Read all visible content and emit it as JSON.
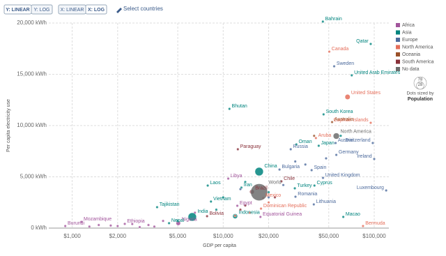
{
  "controls": {
    "y_scale": {
      "options": [
        "Y: LINEAR",
        "Y: LOG"
      ],
      "active": 0
    },
    "x_scale": {
      "options": [
        "X: LINEAR",
        "X: LOG"
      ],
      "active": 1
    },
    "select": "Select countries"
  },
  "chart_data": {
    "type": "scatter",
    "xlabel": "GDP per capita",
    "ylabel": "Per capita electricity use",
    "xscale": "log",
    "grid": true,
    "xlim": [
      700,
      125000
    ],
    "ylim": [
      0,
      20000
    ],
    "xticks": [
      {
        "value": 1000,
        "label": "$1,000"
      },
      {
        "value": 2000,
        "label": "$2,000"
      },
      {
        "value": 5000,
        "label": "$5,000"
      },
      {
        "value": 10000,
        "label": "$10,000"
      },
      {
        "value": 20000,
        "label": "$20,000"
      },
      {
        "value": 50000,
        "label": "$50,000"
      },
      {
        "value": 100000,
        "label": "$100,000"
      }
    ],
    "yticks": [
      {
        "value": 0,
        "label": "0 kWh"
      },
      {
        "value": 5000,
        "label": "5,000 kWh"
      },
      {
        "value": 10000,
        "label": "10,000 kWh"
      },
      {
        "value": 15000,
        "label": "15,000 kWh"
      },
      {
        "value": 20000,
        "label": "20,000 kWh"
      }
    ],
    "size_legend": {
      "values": [
        78,
        28
      ],
      "title": "Dots sized by",
      "variable": "Population"
    },
    "series": [
      {
        "name": "Africa",
        "color": "#a2559c",
        "points": [
          {
            "x": 900,
            "y": 200,
            "label": "Burundi"
          },
          {
            "x": 1150,
            "y": 610,
            "label": "Mozambique"
          },
          {
            "x": 2230,
            "y": 410,
            "label": "Ethiopia"
          },
          {
            "x": 5040,
            "y": 480,
            "label": "Nigeria",
            "population": 206
          },
          {
            "x": 10800,
            "y": 4830,
            "label": "Libya"
          },
          {
            "x": 12400,
            "y": 2180,
            "label": "Egypt"
          },
          {
            "x": 17650,
            "y": 1090,
            "label": "Equatorial Guinea"
          },
          {
            "x": 1500,
            "y": 300
          },
          {
            "x": 1800,
            "y": 250
          },
          {
            "x": 2500,
            "y": 400
          },
          {
            "x": 3200,
            "y": 300
          },
          {
            "x": 1300,
            "y": 150
          },
          {
            "x": 2000,
            "y": 200
          },
          {
            "x": 4000,
            "y": 700
          },
          {
            "x": 6500,
            "y": 1500
          },
          {
            "x": 3500,
            "y": 150
          },
          {
            "x": 2800,
            "y": 100
          }
        ]
      },
      {
        "name": "Asia",
        "color": "#00847e",
        "points": [
          {
            "x": 45700,
            "y": 20140,
            "label": "Bahrain"
          },
          {
            "x": 94800,
            "y": 17960,
            "label": "Qatar"
          },
          {
            "x": 71000,
            "y": 14900,
            "label": "United Arab Emirates"
          },
          {
            "x": 11000,
            "y": 11630,
            "label": "Bhutan"
          },
          {
            "x": 46200,
            "y": 11090,
            "label": "South Korea"
          },
          {
            "x": 30500,
            "y": 8160,
            "label": "Oman"
          },
          {
            "x": 42900,
            "y": 8030,
            "label": "Japan"
          },
          {
            "x": 17300,
            "y": 5510,
            "label": "China",
            "population": 1400
          },
          {
            "x": 7900,
            "y": 4150,
            "label": "Laos"
          },
          {
            "x": 13200,
            "y": 3950,
            "label": "Iran"
          },
          {
            "x": 29800,
            "y": 3880,
            "label": "Turkey"
          },
          {
            "x": 40200,
            "y": 4150,
            "label": "Cyprus"
          },
          {
            "x": 8300,
            "y": 2590,
            "label": "Vietnam"
          },
          {
            "x": 3650,
            "y": 2040,
            "label": "Tajikistan"
          },
          {
            "x": 6240,
            "y": 1090,
            "label": "India",
            "population": 1380
          },
          {
            "x": 4380,
            "y": 480,
            "label": "Nepal"
          },
          {
            "x": 12000,
            "y": 1160,
            "label": "Indonesia",
            "population": 273
          },
          {
            "x": 62400,
            "y": 1090,
            "label": "Macao"
          },
          {
            "x": 10000,
            "y": 3000
          },
          {
            "x": 14000,
            "y": 4500
          },
          {
            "x": 20000,
            "y": 3500
          },
          {
            "x": 5000,
            "y": 700
          },
          {
            "x": 9000,
            "y": 1800
          },
          {
            "x": 60000,
            "y": 9000
          }
        ]
      },
      {
        "name": "Europe",
        "color": "#4c6a9c",
        "points": [
          {
            "x": 54300,
            "y": 15780,
            "label": "Sweden"
          },
          {
            "x": 55500,
            "y": 8300,
            "label": "Austria"
          },
          {
            "x": 97800,
            "y": 8300,
            "label": "Switzerland"
          },
          {
            "x": 28000,
            "y": 7690,
            "label": "Russia"
          },
          {
            "x": 56100,
            "y": 7140,
            "label": "Germany"
          },
          {
            "x": 100000,
            "y": 6740,
            "label": "Ireland"
          },
          {
            "x": 23600,
            "y": 5710,
            "label": "Bulgaria"
          },
          {
            "x": 38500,
            "y": 5650,
            "label": "Spain"
          },
          {
            "x": 45800,
            "y": 4900,
            "label": "United Kingdom"
          },
          {
            "x": 120000,
            "y": 3670,
            "label": "Luxembourg"
          },
          {
            "x": 30100,
            "y": 3060,
            "label": "Romania"
          },
          {
            "x": 39800,
            "y": 2310,
            "label": "Lithuania"
          },
          {
            "x": 30000,
            "y": 6500
          },
          {
            "x": 25000,
            "y": 4200
          },
          {
            "x": 35000,
            "y": 6200
          },
          {
            "x": 20000,
            "y": 3000
          },
          {
            "x": 48000,
            "y": 6800
          },
          {
            "x": 13000,
            "y": 3800
          }
        ]
      },
      {
        "name": "North America",
        "color": "#e56e5a",
        "points": [
          {
            "x": 50400,
            "y": 17210,
            "label": "Canada"
          },
          {
            "x": 66600,
            "y": 12790,
            "label": "United States",
            "population": 331
          },
          {
            "x": 94800,
            "y": 10270,
            "label": "Cayman Islands"
          },
          {
            "x": 41100,
            "y": 8780,
            "label": "Aruba"
          },
          {
            "x": 18400,
            "y": 2930,
            "label": "Mexico"
          },
          {
            "x": 17800,
            "y": 1900,
            "label": "Dominican Republic"
          },
          {
            "x": 84300,
            "y": 200,
            "label": "Bermuda"
          },
          {
            "x": 15000,
            "y": 1500
          },
          {
            "x": 20000,
            "y": 2500
          },
          {
            "x": 12000,
            "y": 1200
          }
        ]
      },
      {
        "name": "Oceania",
        "color": "#9a5129",
        "points": [
          {
            "x": 52600,
            "y": 10340,
            "label": "Australia"
          },
          {
            "x": 40000,
            "y": 9000
          }
        ]
      },
      {
        "name": "South America",
        "color": "#883039",
        "points": [
          {
            "x": 12500,
            "y": 7690,
            "label": "Paraguay"
          },
          {
            "x": 24300,
            "y": 4560,
            "label": "Chile"
          },
          {
            "x": 15500,
            "y": 3540,
            "label": "Brazil",
            "population": 212
          },
          {
            "x": 7820,
            "y": 1160,
            "label": "Bolivia"
          },
          {
            "x": 14000,
            "y": 2200
          },
          {
            "x": 22000,
            "y": 3000
          },
          {
            "x": 13000,
            "y": 1800
          }
        ]
      },
      {
        "name": "No data",
        "color": "#6d6d6d",
        "points": [
          {
            "x": 56100,
            "y": 8980,
            "label": "North America",
            "population": 590
          },
          {
            "x": 17300,
            "y": 3500,
            "label": "World",
            "population": 7800
          }
        ]
      }
    ]
  }
}
